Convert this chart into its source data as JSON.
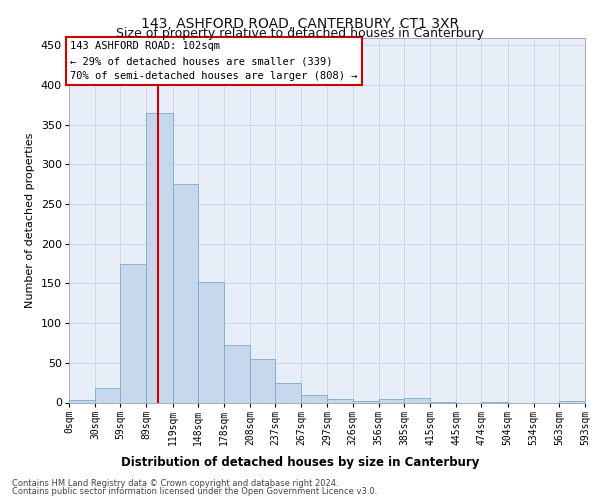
{
  "title": "143, ASHFORD ROAD, CANTERBURY, CT1 3XR",
  "subtitle": "Size of property relative to detached houses in Canterbury",
  "xlabel": "Distribution of detached houses by size in Canterbury",
  "ylabel": "Number of detached properties",
  "footnote1": "Contains HM Land Registry data © Crown copyright and database right 2024.",
  "footnote2": "Contains public sector information licensed under the Open Government Licence v3.0.",
  "bar_color": "#c8d8ec",
  "bar_edge_color": "#7aaac8",
  "grid_color": "#c8d4e4",
  "background_color": "#e8eef8",
  "property_size": 102,
  "annotation_line1": "143 ASHFORD ROAD: 102sqm",
  "annotation_line2": "← 29% of detached houses are smaller (339)",
  "annotation_line3": "70% of semi-detached houses are larger (808) →",
  "annotation_box_color": "#ffffff",
  "annotation_border_color": "#cc0000",
  "vline_color": "#cc0000",
  "bin_edges": [
    0,
    30,
    59,
    89,
    119,
    148,
    178,
    208,
    237,
    267,
    297,
    326,
    356,
    385,
    415,
    445,
    474,
    504,
    534,
    563,
    593
  ],
  "bin_labels": [
    "0sqm",
    "30sqm",
    "59sqm",
    "89sqm",
    "119sqm",
    "148sqm",
    "178sqm",
    "208sqm",
    "237sqm",
    "267sqm",
    "297sqm",
    "326sqm",
    "356sqm",
    "385sqm",
    "415sqm",
    "445sqm",
    "474sqm",
    "504sqm",
    "534sqm",
    "563sqm",
    "593sqm"
  ],
  "counts": [
    3,
    18,
    175,
    365,
    275,
    152,
    73,
    55,
    25,
    9,
    4,
    2,
    5,
    6,
    1,
    0,
    1,
    0,
    0,
    2
  ],
  "ylim": [
    0,
    460
  ],
  "yticks": [
    0,
    50,
    100,
    150,
    200,
    250,
    300,
    350,
    400,
    450
  ]
}
